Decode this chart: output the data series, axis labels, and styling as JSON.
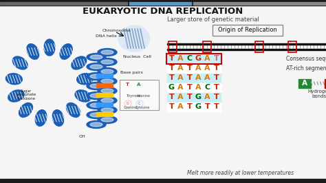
{
  "title": "EUKARYOTIC DNA REPLICATION",
  "subtitle": "Larger store of genetic material",
  "origin_label": "Origin of Replication",
  "consensus_label": "Consensus sequence",
  "at_rich_label": "AT-rich segments",
  "hydrogen_label": "Hydrogen\nbonds",
  "melt_label": "Melt more readily at lower temperatures",
  "top_bar_color": "#1a1a1a",
  "top_bar_left_color": "#555555",
  "top_bar_center_color": "#5599cc",
  "top_bar_right_color": "#888888",
  "content_bg": "#f8f8f8",
  "sequences": [
    {
      "letters": [
        "T",
        "A",
        "C",
        "G",
        "A",
        "T"
      ],
      "colors": [
        "#cc2200",
        "#dd7700",
        "#006600",
        "#cc2200",
        "#dd7700",
        "#cc6688"
      ],
      "bg": "#c8eef8",
      "box": true
    },
    {
      "letters": [
        "T",
        "A",
        "T",
        "A",
        "A",
        "T"
      ],
      "colors": [
        "#cc2200",
        "#dd7700",
        "#cc2200",
        "#dd7700",
        "#dd7700",
        "#cc2200"
      ],
      "bg": "#ffffff",
      "box": false
    },
    {
      "letters": [
        "T",
        "A",
        "T",
        "A",
        "A",
        "T"
      ],
      "colors": [
        "#cc2200",
        "#dd7700",
        "#cc2200",
        "#dd7700",
        "#dd7700",
        "#cc2200"
      ],
      "bg": "#c8eef8",
      "box": false
    },
    {
      "letters": [
        "G",
        "A",
        "T",
        "A",
        "C",
        "T"
      ],
      "colors": [
        "#006600",
        "#dd7700",
        "#cc2200",
        "#dd7700",
        "#006600",
        "#cc2200"
      ],
      "bg": "#ffffff",
      "box": false
    },
    {
      "letters": [
        "T",
        "A",
        "T",
        "G",
        "A",
        "T"
      ],
      "colors": [
        "#cc2200",
        "#dd7700",
        "#cc2200",
        "#006600",
        "#dd7700",
        "#cc2200"
      ],
      "bg": "#c8eef8",
      "box": false
    },
    {
      "letters": [
        "T",
        "A",
        "T",
        "G",
        "T",
        "T"
      ],
      "colors": [
        "#cc2200",
        "#dd7700",
        "#cc2200",
        "#006600",
        "#cc2200",
        "#cc2200"
      ],
      "bg": "#ffffff",
      "box": false
    }
  ],
  "fig_w": 4.74,
  "fig_h": 2.66,
  "dpi": 100
}
